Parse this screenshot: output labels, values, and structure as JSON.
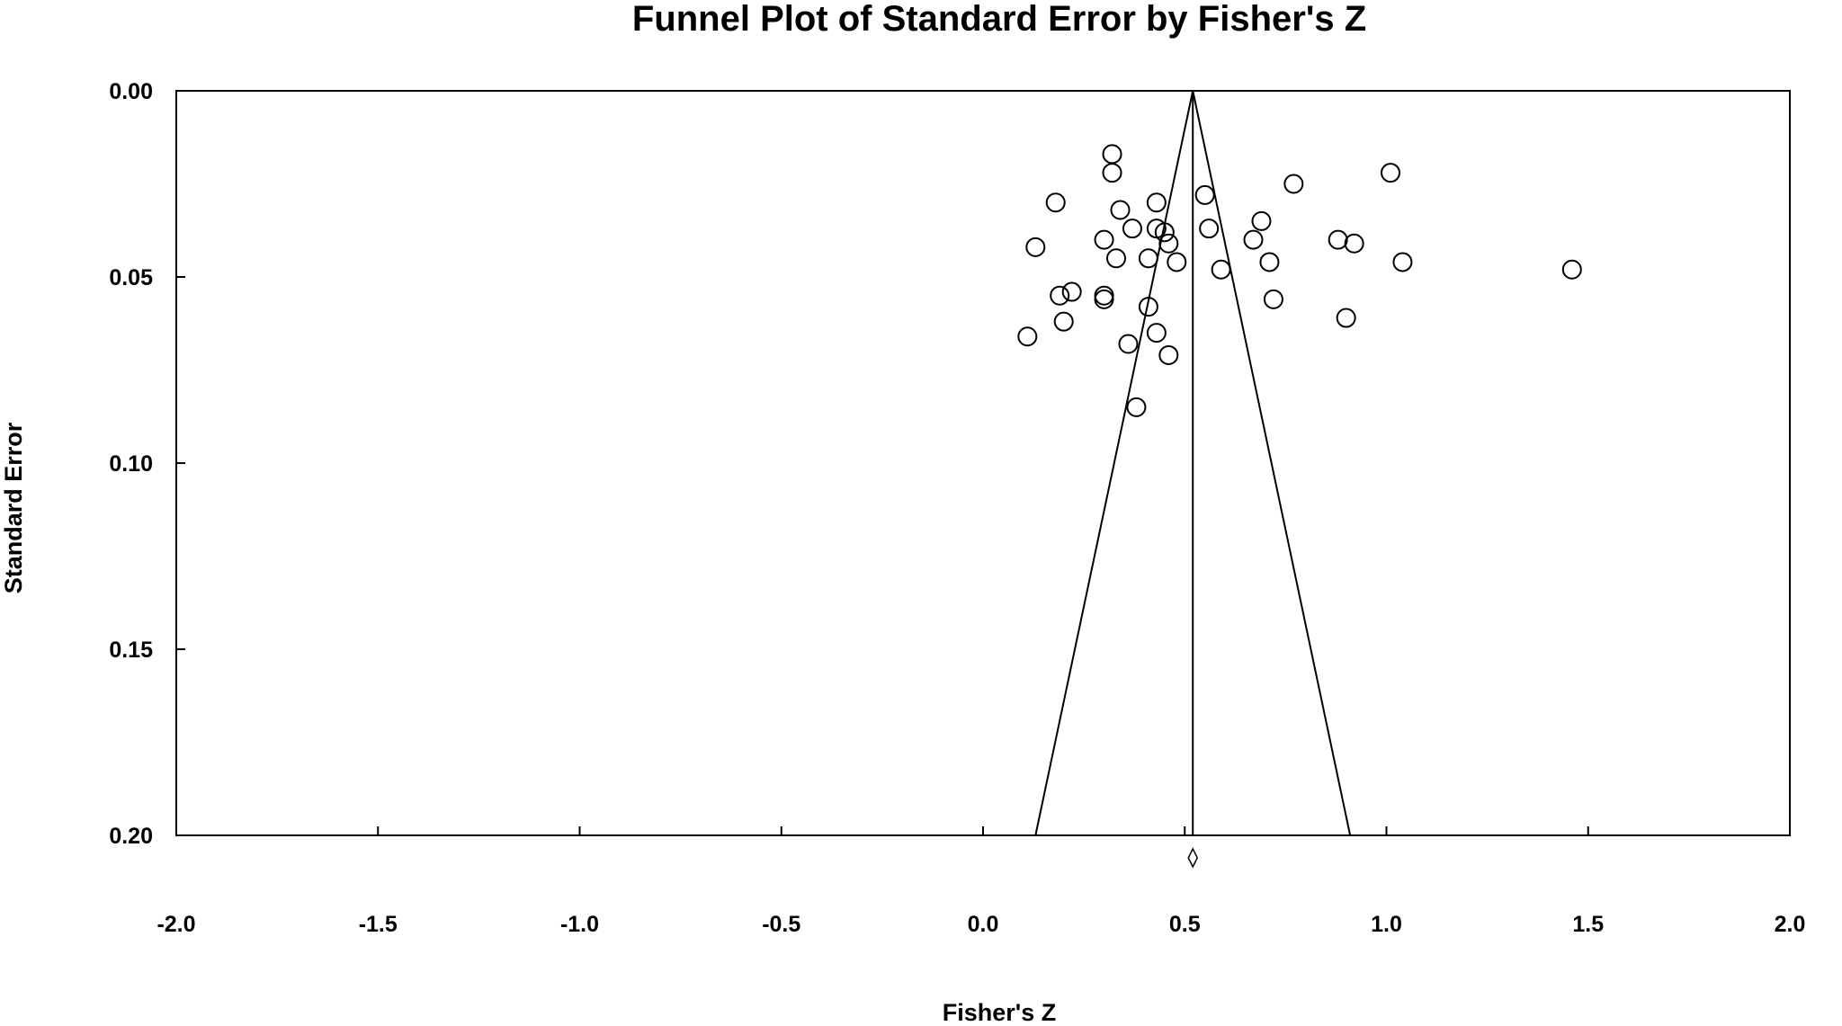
{
  "chart_data": {
    "type": "scatter",
    "title": "Funnel Plot of Standard Error by Fisher's Z",
    "xlabel": "Fisher's Z",
    "ylabel": "Standard Error",
    "xlim": [
      -2.0,
      2.0
    ],
    "ylim": [
      0.0,
      0.2
    ],
    "y_inverted": true,
    "x_ticks": [
      "-2.0",
      "-1.5",
      "-1.0",
      "-0.5",
      "0.0",
      "0.5",
      "1.0",
      "1.5",
      "2.0"
    ],
    "y_ticks": [
      "0.00",
      "0.05",
      "0.10",
      "0.15",
      "0.20"
    ],
    "grid": false,
    "legend": "none",
    "marker": "open-circle",
    "summary_estimate": 0.52,
    "summary_marker": "diamond",
    "funnel": {
      "apex_x": 0.52,
      "apex_y": 0.0,
      "bottom_left_x": 0.13,
      "bottom_right_x": 0.91,
      "bottom_y": 0.2
    },
    "points": [
      {
        "x": 0.32,
        "y": 0.017
      },
      {
        "x": 0.32,
        "y": 0.022
      },
      {
        "x": 1.01,
        "y": 0.022
      },
      {
        "x": 0.77,
        "y": 0.025
      },
      {
        "x": 0.55,
        "y": 0.028
      },
      {
        "x": 0.18,
        "y": 0.03
      },
      {
        "x": 0.43,
        "y": 0.03
      },
      {
        "x": 0.34,
        "y": 0.032
      },
      {
        "x": 0.69,
        "y": 0.035
      },
      {
        "x": 0.37,
        "y": 0.037
      },
      {
        "x": 0.43,
        "y": 0.037
      },
      {
        "x": 0.45,
        "y": 0.038
      },
      {
        "x": 0.56,
        "y": 0.037
      },
      {
        "x": 0.3,
        "y": 0.04
      },
      {
        "x": 0.67,
        "y": 0.04
      },
      {
        "x": 0.88,
        "y": 0.04
      },
      {
        "x": 0.46,
        "y": 0.041
      },
      {
        "x": 0.13,
        "y": 0.042
      },
      {
        "x": 0.92,
        "y": 0.041
      },
      {
        "x": 0.33,
        "y": 0.045
      },
      {
        "x": 0.41,
        "y": 0.045
      },
      {
        "x": 0.48,
        "y": 0.046
      },
      {
        "x": 0.71,
        "y": 0.046
      },
      {
        "x": 1.04,
        "y": 0.046
      },
      {
        "x": 0.59,
        "y": 0.048
      },
      {
        "x": 1.46,
        "y": 0.048
      },
      {
        "x": 0.22,
        "y": 0.054
      },
      {
        "x": 0.19,
        "y": 0.055
      },
      {
        "x": 0.3,
        "y": 0.055
      },
      {
        "x": 0.3,
        "y": 0.056
      },
      {
        "x": 0.72,
        "y": 0.056
      },
      {
        "x": 0.41,
        "y": 0.058
      },
      {
        "x": 0.9,
        "y": 0.061
      },
      {
        "x": 0.2,
        "y": 0.062
      },
      {
        "x": 0.43,
        "y": 0.065
      },
      {
        "x": 0.11,
        "y": 0.066
      },
      {
        "x": 0.36,
        "y": 0.068
      },
      {
        "x": 0.46,
        "y": 0.071
      },
      {
        "x": 0.38,
        "y": 0.085
      }
    ]
  }
}
